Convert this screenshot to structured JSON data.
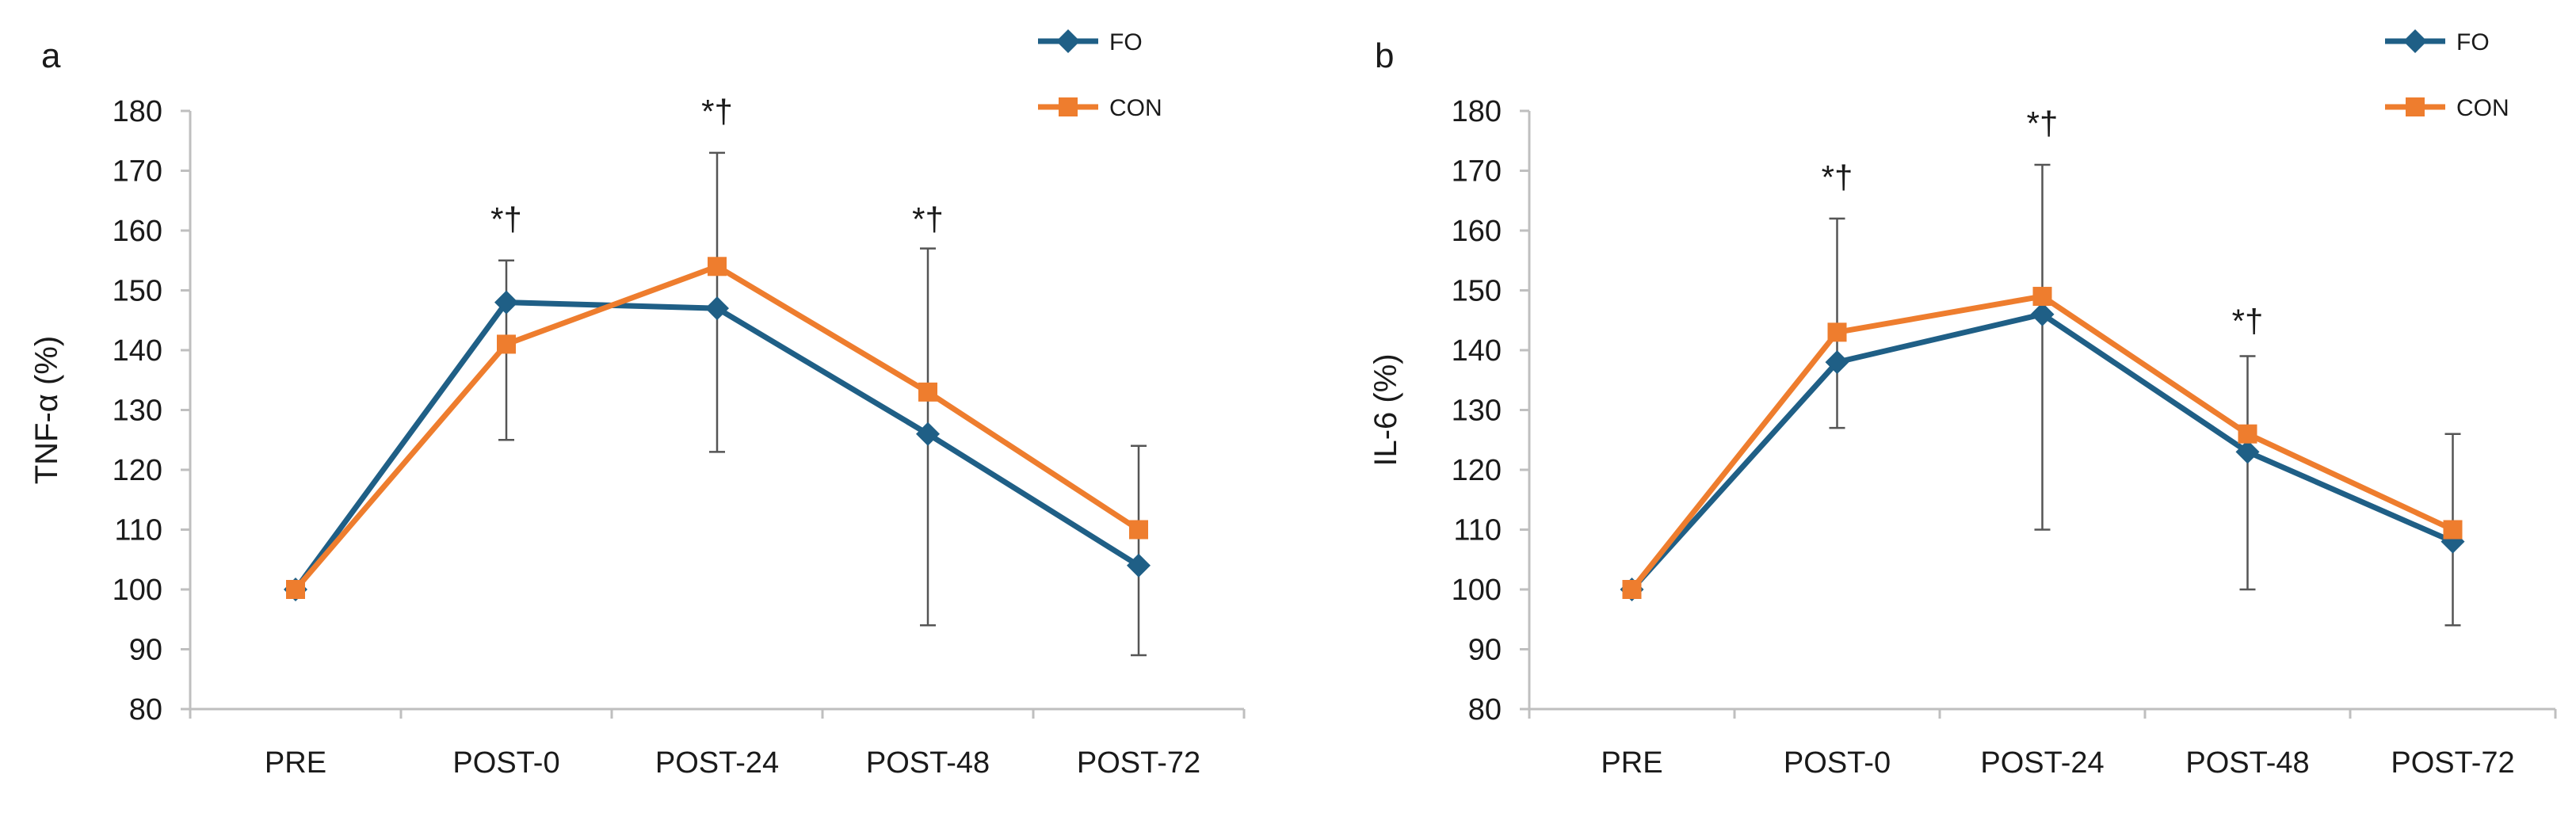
{
  "colors": {
    "FO": "#1f5f86",
    "CON": "#ee7d2e",
    "axis": "#bfbfbf",
    "error_bar": "#555555"
  },
  "chart_data": [
    {
      "type": "line",
      "panel_label": "a",
      "title": "",
      "xlabel": "",
      "ylabel": "TNF-α (%)",
      "ylim": [
        80,
        180
      ],
      "yticks": [
        80,
        90,
        100,
        110,
        120,
        130,
        140,
        150,
        160,
        170,
        180
      ],
      "grid": false,
      "legend_position": "top-right",
      "categories": [
        "PRE",
        "POST-0",
        "POST-24",
        "POST-48",
        "POST-72"
      ],
      "series": [
        {
          "name": "FO",
          "marker": "diamond",
          "values": [
            100,
            148,
            147,
            126,
            104
          ]
        },
        {
          "name": "CON",
          "marker": "square",
          "values": [
            100,
            141,
            154,
            133,
            110
          ]
        }
      ],
      "error_bars": [
        {
          "category": "POST-0",
          "low": 125,
          "high": 155
        },
        {
          "category": "POST-24",
          "low": 123,
          "high": 173
        },
        {
          "category": "POST-48",
          "low": 94,
          "high": 157
        },
        {
          "category": "POST-72",
          "low": 89,
          "high": 124
        }
      ],
      "annotations": [
        {
          "category": "POST-0",
          "text": "*†",
          "y": 160
        },
        {
          "category": "POST-24",
          "text": "*†",
          "y": 178
        },
        {
          "category": "POST-48",
          "text": "*†",
          "y": 160
        }
      ]
    },
    {
      "type": "line",
      "panel_label": "b",
      "title": "",
      "xlabel": "",
      "ylabel": "IL-6 (%)",
      "ylim": [
        80,
        180
      ],
      "yticks": [
        80,
        90,
        100,
        110,
        120,
        130,
        140,
        150,
        160,
        170,
        180
      ],
      "grid": false,
      "legend_position": "top-right",
      "categories": [
        "PRE",
        "POST-0",
        "POST-24",
        "POST-48",
        "POST-72"
      ],
      "series": [
        {
          "name": "FO",
          "marker": "diamond",
          "values": [
            100,
            138,
            146,
            123,
            108
          ]
        },
        {
          "name": "CON",
          "marker": "square",
          "values": [
            100,
            143,
            149,
            126,
            110
          ]
        }
      ],
      "error_bars": [
        {
          "category": "POST-0",
          "low": 127,
          "high": 162
        },
        {
          "category": "POST-24",
          "low": 110,
          "high": 171
        },
        {
          "category": "POST-48",
          "low": 100,
          "high": 139
        },
        {
          "category": "POST-72",
          "low": 94,
          "high": 126
        }
      ],
      "annotations": [
        {
          "category": "POST-0",
          "text": "*†",
          "y": 167
        },
        {
          "category": "POST-24",
          "text": "*†",
          "y": 176
        },
        {
          "category": "POST-48",
          "text": "*†",
          "y": 143
        }
      ]
    }
  ]
}
